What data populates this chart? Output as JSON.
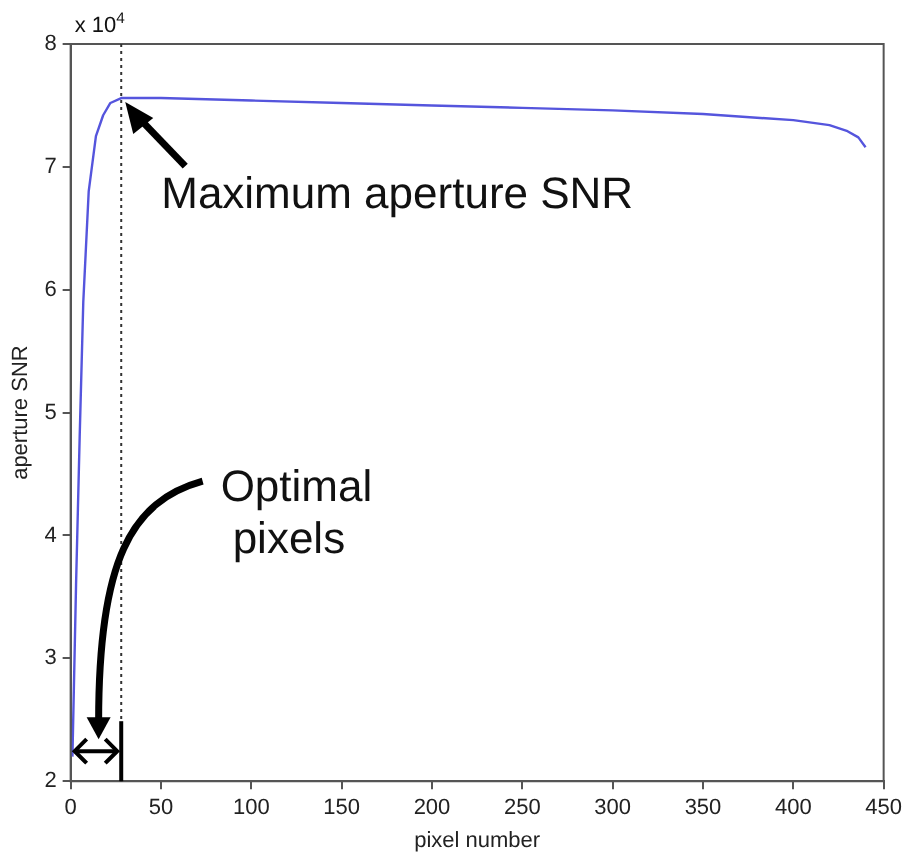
{
  "chart_data": {
    "type": "line",
    "xlabel": "pixel number",
    "ylabel": "aperture SNR",
    "x": [
      1,
      3,
      5,
      7,
      10,
      14,
      18,
      22,
      28,
      50,
      100,
      150,
      200,
      250,
      300,
      350,
      400,
      420,
      430,
      436,
      440
    ],
    "series": [
      {
        "color": "#5555dd",
        "values": [
          2.2,
          3.6,
          4.8,
          5.9,
          6.8,
          7.25,
          7.42,
          7.52,
          7.56,
          7.56,
          7.54,
          7.52,
          7.5,
          7.48,
          7.46,
          7.43,
          7.38,
          7.34,
          7.29,
          7.24,
          7.16
        ]
      }
    ],
    "xlim": [
      0,
      450
    ],
    "xticks": [
      0,
      50,
      100,
      150,
      200,
      250,
      300,
      350,
      400,
      450
    ],
    "ylim": [
      2,
      8
    ],
    "yticks": [
      2,
      3,
      4,
      5,
      6,
      7,
      8
    ],
    "ref_lines": [
      {
        "axis": "x",
        "value": 28,
        "line_style": "dotted",
        "color": "#333333"
      }
    ],
    "annotations": [
      "x 10$^{4}$",
      {
        "text": "Maximum aperture SNR",
        "x": 28,
        "y": 7.56
      },
      "Optimal pixels"
    ],
    "grid": false,
    "legend": false,
    "marker": "none",
    "line_style": "solid"
  }
}
